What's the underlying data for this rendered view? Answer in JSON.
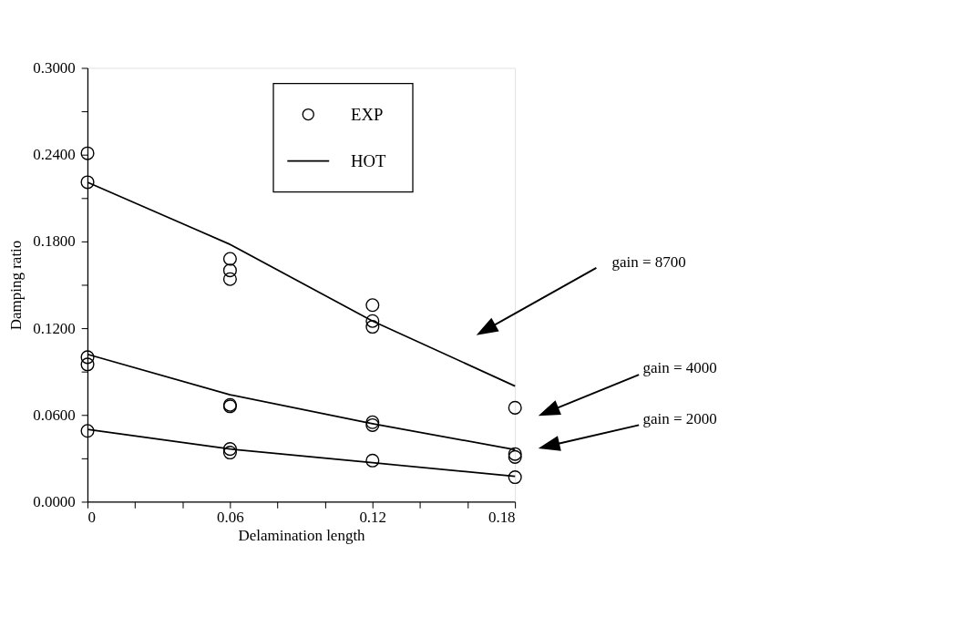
{
  "chart_data": {
    "type": "line",
    "xlabel": "Delamination length",
    "ylabel": "Damping ratio",
    "xlim": [
      0,
      0.18
    ],
    "ylim": [
      0,
      0.3
    ],
    "xticks": [
      0,
      {
        "value": 0.02,
        "label": null
      },
      {
        "value": 0.04,
        "label": null
      },
      0.06,
      {
        "value": 0.08,
        "label": null
      },
      {
        "value": 0.1,
        "label": null
      },
      0.12,
      {
        "value": 0.14,
        "label": null
      },
      {
        "value": 0.16,
        "label": null
      },
      0.18
    ],
    "yticks": [
      {
        "value": 0,
        "label": "0.0000"
      },
      {
        "value": 0.03,
        "label": null
      },
      {
        "value": 0.06,
        "label": "0.0600"
      },
      {
        "value": 0.09,
        "label": null
      },
      {
        "value": 0.12,
        "label": "0.1200"
      },
      {
        "value": 0.15,
        "label": null
      },
      {
        "value": 0.18,
        "label": "0.1800"
      },
      {
        "value": 0.21,
        "label": null
      },
      {
        "value": 0.24,
        "label": "0.2400"
      },
      {
        "value": 0.27,
        "label": null
      },
      {
        "value": 0.3,
        "label": "0.3000"
      }
    ],
    "grid": false,
    "legend": "top",
    "series": [
      {
        "name": "EXP",
        "type": "scatter",
        "marker": "circle",
        "color": "#000000",
        "x": [
          0,
          0,
          0.06,
          0.06,
          0.06,
          0.12,
          0.12,
          0.12,
          0.18,
          0,
          0,
          0.06,
          0.06,
          0.12,
          0.12,
          0.18,
          0.18,
          0,
          0.06,
          0.06,
          0.12,
          0.18
        ],
        "values": [
          0.241,
          0.221,
          0.168,
          0.16,
          0.154,
          0.136,
          0.125,
          0.121,
          0.065,
          0.1,
          0.095,
          0.067,
          0.066,
          0.055,
          0.053,
          0.033,
          0.031,
          0.049,
          0.0365,
          0.034,
          0.0285,
          0.017
        ]
      },
      {
        "name": "HOT",
        "line_style": "solid",
        "color": "#000000",
        "x": [
          0,
          0.06,
          0.12,
          0.18
        ],
        "values": [
          0.221,
          0.178,
          0.125,
          0.08
        ]
      },
      {
        "line_style": "solid",
        "color": "#000000",
        "x": [
          0,
          0.06,
          0.12,
          0.18
        ],
        "values": [
          0.102,
          0.074,
          0.054,
          0.036
        ]
      },
      {
        "line_style": "solid",
        "color": "#000000",
        "x": [
          0,
          0.06,
          0.12,
          0.18
        ],
        "values": [
          0.05,
          0.0365,
          0.027,
          0.0176
        ]
      }
    ],
    "annotations": [
      "gain = 8700",
      "gain = 4000",
      "gain = 2000"
    ]
  }
}
